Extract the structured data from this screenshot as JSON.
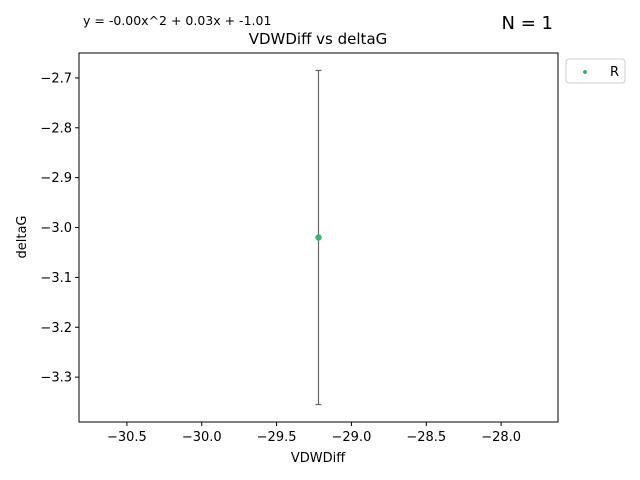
{
  "chart_data": {
    "type": "scatter",
    "title": "VDWDiff vs deltaG",
    "xlabel": "VDWDiff",
    "ylabel": "deltaG",
    "equation": "y = -0.00x^2 + 0.03x + -1.01",
    "count_label": "N = 1",
    "xlim": [
      -30.82,
      -27.62
    ],
    "ylim": [
      -3.39,
      -2.65
    ],
    "x_ticks": [
      -30.5,
      -30.0,
      -29.5,
      -29.0,
      -28.5,
      -28.0
    ],
    "x_tick_labels": [
      "−30.5",
      "−30.0",
      "−29.5",
      "−29.0",
      "−28.5",
      "−28.0"
    ],
    "y_ticks": [
      -2.7,
      -2.8,
      -2.9,
      -3.0,
      -3.1,
      -3.2,
      -3.3
    ],
    "y_tick_labels": [
      "−2.7",
      "−2.8",
      "−2.9",
      "−3.0",
      "−3.1",
      "−3.2",
      "−3.3"
    ],
    "grid": false,
    "legend_position": "outside-top-right",
    "series": [
      {
        "name": "R",
        "color": "#3cb371",
        "points": [
          {
            "x": -29.22,
            "y": -3.02,
            "err_low": -3.355,
            "err_high": -2.685
          }
        ]
      }
    ],
    "errorbar_color": "#666666"
  }
}
